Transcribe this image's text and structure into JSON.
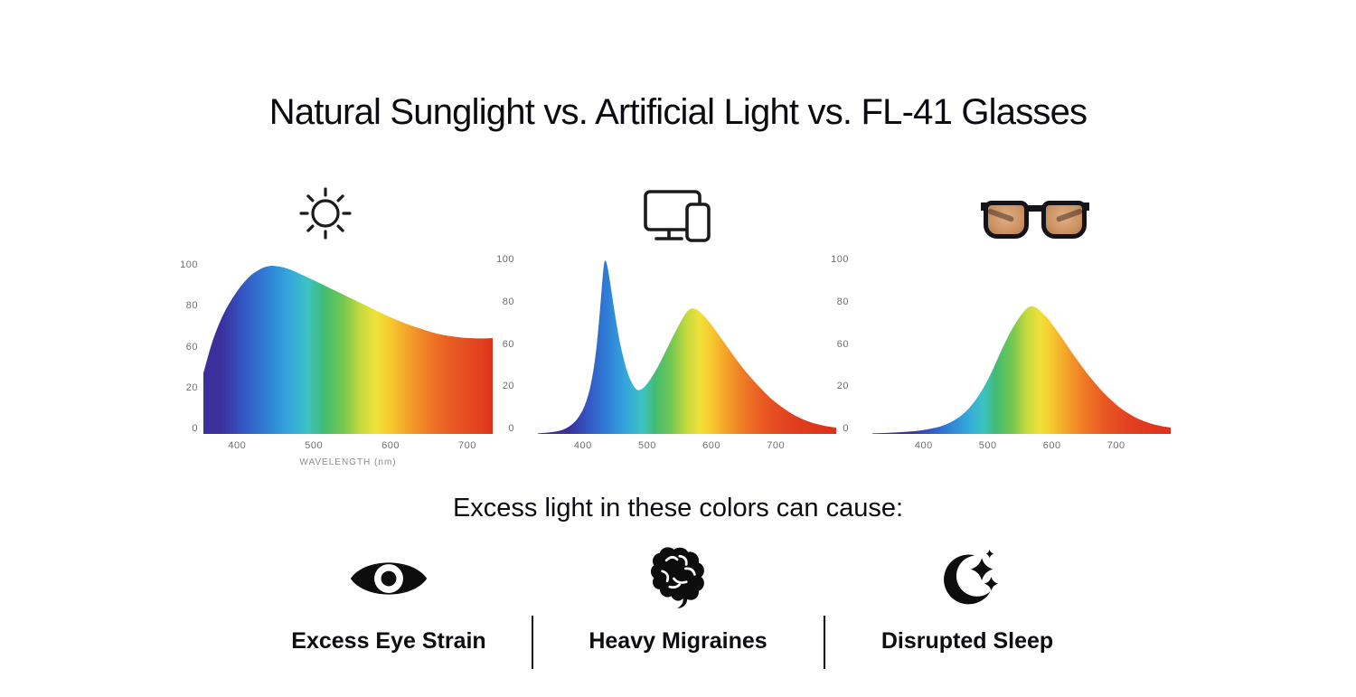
{
  "title": "Natural Sunglight vs. Artificial Light vs. FL-41 Glasses",
  "section_heading": "Excess light in these colors can cause:",
  "charts": [
    {
      "icon": "sun-icon"
    },
    {
      "icon": "devices-icon"
    },
    {
      "icon": "fl41-glasses-icon"
    }
  ],
  "chart_data": [
    {
      "type": "area",
      "title": "",
      "xlabel": "WAVELENGTH (nm)",
      "ylabel": "",
      "x_range": [
        356,
        733
      ],
      "ylim": [
        0,
        100
      ],
      "x_ticks": [
        400,
        500,
        600,
        700
      ],
      "y_tick_labels": [
        "100",
        "80",
        "60",
        "20",
        "0"
      ],
      "grid": false,
      "legend": "none",
      "points": [
        [
          356,
          35
        ],
        [
          365,
          50
        ],
        [
          374,
          61
        ],
        [
          383,
          70
        ],
        [
          392,
          77
        ],
        [
          401,
          83
        ],
        [
          410,
          88
        ],
        [
          419,
          92
        ],
        [
          428,
          94.5
        ],
        [
          437,
          96.5
        ],
        [
          446,
          97
        ],
        [
          455,
          96.5
        ],
        [
          464,
          95.5
        ],
        [
          476,
          93.5
        ],
        [
          488,
          91
        ],
        [
          500,
          88.5
        ],
        [
          514,
          85.5
        ],
        [
          528,
          82.5
        ],
        [
          542,
          79.5
        ],
        [
          556,
          76.5
        ],
        [
          570,
          73.5
        ],
        [
          584,
          70.5
        ],
        [
          598,
          67.5
        ],
        [
          612,
          65
        ],
        [
          626,
          62.5
        ],
        [
          640,
          60.5
        ],
        [
          654,
          58.5
        ],
        [
          668,
          57
        ],
        [
          682,
          56
        ],
        [
          696,
          55.3
        ],
        [
          710,
          55
        ],
        [
          722,
          55
        ],
        [
          733,
          55.2
        ]
      ]
    },
    {
      "type": "area",
      "title": "",
      "xlabel": "",
      "ylabel": "",
      "x_range": [
        330,
        794
      ],
      "ylim": [
        0,
        100
      ],
      "x_ticks": [
        400,
        500,
        600,
        700
      ],
      "y_tick_labels": [
        "100",
        "80",
        "60",
        "20",
        "0"
      ],
      "grid": false,
      "legend": "none",
      "points": [
        [
          330,
          0.3
        ],
        [
          348,
          0.8
        ],
        [
          362,
          1.5
        ],
        [
          374,
          3
        ],
        [
          384,
          5.5
        ],
        [
          393,
          9
        ],
        [
          401,
          14
        ],
        [
          408,
          21
        ],
        [
          414,
          30
        ],
        [
          420,
          44
        ],
        [
          425,
          62
        ],
        [
          429,
          80
        ],
        [
          432,
          93
        ],
        [
          434,
          97.5
        ],
        [
          437,
          96
        ],
        [
          441,
          88
        ],
        [
          446,
          76
        ],
        [
          452,
          62
        ],
        [
          458,
          50
        ],
        [
          464,
          41
        ],
        [
          470,
          33.5
        ],
        [
          476,
          28.5
        ],
        [
          481,
          25.5
        ],
        [
          486,
          24.2
        ],
        [
          492,
          25
        ],
        [
          499,
          27.5
        ],
        [
          507,
          31.5
        ],
        [
          516,
          37
        ],
        [
          525,
          43.5
        ],
        [
          534,
          50
        ],
        [
          543,
          56.5
        ],
        [
          551,
          62
        ],
        [
          558,
          66.5
        ],
        [
          564,
          69.3
        ],
        [
          570,
          70.3
        ],
        [
          576,
          69.8
        ],
        [
          583,
          68
        ],
        [
          591,
          65
        ],
        [
          600,
          61
        ],
        [
          610,
          56
        ],
        [
          620,
          51
        ],
        [
          631,
          45.5
        ],
        [
          642,
          40
        ],
        [
          654,
          34.5
        ],
        [
          666,
          29.5
        ],
        [
          678,
          25
        ],
        [
          690,
          20.5
        ],
        [
          702,
          17
        ],
        [
          714,
          13.8
        ],
        [
          726,
          11
        ],
        [
          738,
          8.8
        ],
        [
          750,
          7
        ],
        [
          764,
          5.5
        ],
        [
          778,
          4.3
        ],
        [
          794,
          3.5
        ]
      ]
    },
    {
      "type": "area",
      "title": "",
      "xlabel": "",
      "ylabel": "",
      "x_range": [
        320,
        785
      ],
      "ylim": [
        0,
        100
      ],
      "x_ticks": [
        400,
        500,
        600,
        700
      ],
      "y_tick_labels": [
        "100",
        "80",
        "60",
        "20",
        "0"
      ],
      "grid": false,
      "legend": "none",
      "points": [
        [
          320,
          0.3
        ],
        [
          345,
          0.6
        ],
        [
          368,
          1
        ],
        [
          388,
          1.6
        ],
        [
          405,
          2.4
        ],
        [
          420,
          3.5
        ],
        [
          433,
          5
        ],
        [
          445,
          7
        ],
        [
          456,
          9.5
        ],
        [
          466,
          12.5
        ],
        [
          476,
          16.5
        ],
        [
          486,
          21.5
        ],
        [
          496,
          27.5
        ],
        [
          506,
          34.5
        ],
        [
          516,
          42.5
        ],
        [
          526,
          50.5
        ],
        [
          536,
          57.5
        ],
        [
          545,
          63
        ],
        [
          553,
          67
        ],
        [
          560,
          70
        ],
        [
          566,
          71.5
        ],
        [
          572,
          71.3
        ],
        [
          579,
          69.8
        ],
        [
          587,
          67
        ],
        [
          596,
          63.5
        ],
        [
          606,
          58.5
        ],
        [
          616,
          53.5
        ],
        [
          627,
          47.5
        ],
        [
          638,
          42
        ],
        [
          650,
          36
        ],
        [
          662,
          30.5
        ],
        [
          674,
          25.5
        ],
        [
          686,
          21
        ],
        [
          698,
          17
        ],
        [
          710,
          13.5
        ],
        [
          722,
          10.8
        ],
        [
          735,
          8.3
        ],
        [
          748,
          6.5
        ],
        [
          762,
          5
        ],
        [
          776,
          4
        ],
        [
          785,
          3.6
        ]
      ]
    }
  ],
  "causes": [
    {
      "icon": "eye-icon",
      "label": "Excess Eye Strain"
    },
    {
      "icon": "brain-icon",
      "label": "Heavy Migraines"
    },
    {
      "icon": "moon-stars-icon",
      "label": "Disrupted Sleep"
    }
  ],
  "colors": {
    "title_text": "#0b0b12",
    "axis_text": "#6f6f6f",
    "caption_text": "#8b8b8b",
    "icon": "#111111",
    "lens_tint": "#cf9668",
    "spectrum_stops": [
      [
        378,
        "#3a2f9b"
      ],
      [
        408,
        "#3356c3"
      ],
      [
        438,
        "#2e7fd6"
      ],
      [
        468,
        "#35a7dc"
      ],
      [
        492,
        "#3cc2c3"
      ],
      [
        512,
        "#42bb74"
      ],
      [
        538,
        "#74c751"
      ],
      [
        560,
        "#c3d83f"
      ],
      [
        582,
        "#f2e13a"
      ],
      [
        602,
        "#f6c52e"
      ],
      [
        626,
        "#f39d28"
      ],
      [
        650,
        "#ef7a26"
      ],
      [
        678,
        "#e95b23"
      ],
      [
        718,
        "#e2411f"
      ],
      [
        788,
        "#dc3219"
      ]
    ]
  }
}
